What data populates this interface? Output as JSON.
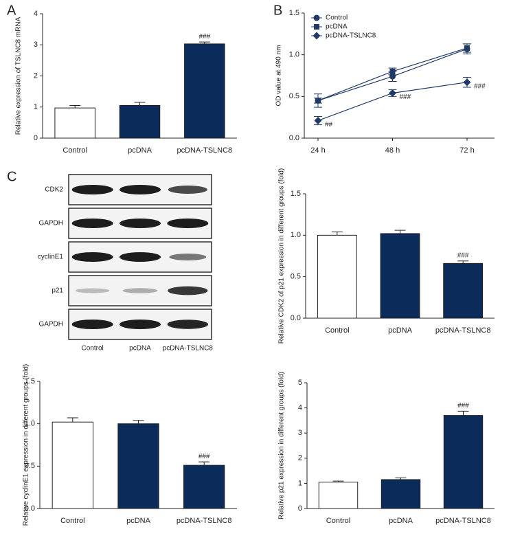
{
  "chart_data": [
    {
      "type": "bar",
      "panel_label": "A",
      "y_label": "Relative expression of TSLNC8 mRNA",
      "categories": [
        "Control",
        "pcDNA",
        "pcDNA-TSLNC8"
      ],
      "values": [
        0.97,
        1.05,
        3.03
      ],
      "errors": [
        0.08,
        0.1,
        0.06
      ],
      "colors": [
        "#ffffff",
        "#0b2c5a",
        "#0b2c5a"
      ],
      "annotations": [
        null,
        null,
        "###"
      ],
      "ylim": [
        0,
        4
      ],
      "yticks": [
        0,
        1,
        2,
        3,
        4
      ]
    },
    {
      "type": "line",
      "panel_label": "B",
      "y_label": "OD value at 490 nm",
      "categories": [
        "24 h",
        "48 h",
        "72 h"
      ],
      "series": [
        {
          "name": "Control",
          "color": "#1f3a66",
          "marker": "circle",
          "values": [
            0.45,
            0.74,
            1.07
          ],
          "errors": [
            0.08,
            0.06,
            0.06
          ]
        },
        {
          "name": "pcDNA",
          "color": "#1f3a66",
          "marker": "square",
          "values": [
            0.45,
            0.8,
            1.08
          ],
          "errors": [
            0.03,
            0.04,
            0.05
          ]
        },
        {
          "name": "pcDNA-TSLNC8",
          "color": "#1f3a66",
          "marker": "diamond",
          "values": [
            0.21,
            0.54,
            0.67
          ],
          "errors": [
            0.05,
            0.04,
            0.06
          ],
          "annotations": [
            "##",
            "###",
            "###"
          ]
        }
      ],
      "ylim": [
        0,
        1.5
      ],
      "yticks": [
        {
          "value": 0,
          "label": "0.0"
        },
        0.5,
        {
          "value": 1,
          "label": "1.0"
        },
        1.5
      ],
      "legend": "upper left"
    },
    {
      "type": "blot",
      "panel_label": "C",
      "rows": [
        "CDK2",
        "GAPDH",
        "cyclinE1",
        "p21",
        "GAPDH"
      ],
      "categories": [
        "Control",
        "pcDNA",
        "pcDNA-TSLNC8"
      ]
    },
    {
      "type": "bar",
      "y_label": "Relative CDK2 of p21 expression in different groups (fold)",
      "categories": [
        "Control",
        "pcDNA",
        "pcDNA-TSLNC8"
      ],
      "values": [
        1.0,
        1.02,
        0.66
      ],
      "errors": [
        0.04,
        0.04,
        0.03
      ],
      "colors": [
        "#ffffff",
        "#0b2c5a",
        "#0b2c5a"
      ],
      "annotations": [
        null,
        null,
        "###"
      ],
      "ylim": [
        0,
        1.5
      ],
      "yticks": [
        {
          "value": 0,
          "label": "0.0"
        },
        0.5,
        {
          "value": 1,
          "label": "1.0"
        },
        1.5
      ]
    },
    {
      "type": "bar",
      "y_label": "Relative cyclinE1 expression in different groups (fold)",
      "categories": [
        "Control",
        "pcDNA",
        "pcDNA-TSLNC8"
      ],
      "values": [
        1.02,
        1.0,
        0.51
      ],
      "errors": [
        0.05,
        0.04,
        0.04
      ],
      "colors": [
        "#ffffff",
        "#0b2c5a",
        "#0b2c5a"
      ],
      "annotations": [
        null,
        null,
        "###"
      ],
      "ylim": [
        0,
        1.5
      ],
      "yticks": [
        {
          "value": 0,
          "label": "0.0"
        },
        0.5,
        {
          "value": 1,
          "label": "1.0"
        },
        1.5
      ]
    },
    {
      "type": "bar",
      "y_label": "Relative p21 expression in different groups (fold)",
      "categories": [
        "Control",
        "pcDNA",
        "pcDNA-TSLNC8"
      ],
      "values": [
        1.05,
        1.15,
        3.7
      ],
      "errors": [
        0.04,
        0.07,
        0.17
      ],
      "colors": [
        "#ffffff",
        "#0b2c5a",
        "#0b2c5a"
      ],
      "annotations": [
        null,
        null,
        "###"
      ],
      "ylim": [
        0,
        5
      ],
      "yticks": [
        0,
        1,
        2,
        3,
        4,
        5
      ]
    }
  ]
}
